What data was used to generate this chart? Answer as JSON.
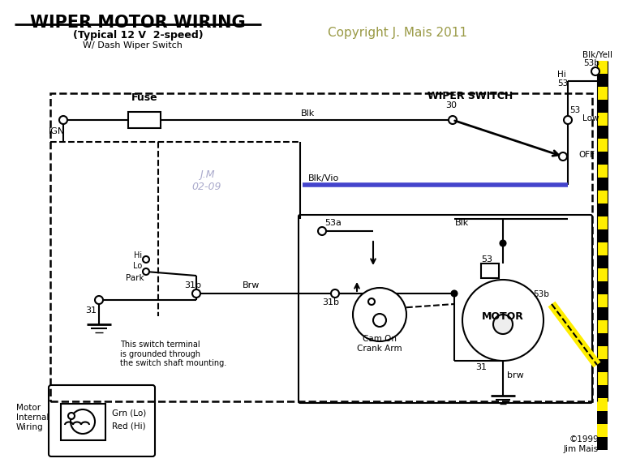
{
  "title": "WIPER MOTOR WIRING",
  "subtitle1": "(Typical 12 V  2-speed)",
  "subtitle2": "W/ Dash Wiper Switch",
  "copyright": "Copyright J. Mais 2011",
  "watermark_line1": "J.M",
  "watermark_line2": "02-09",
  "bottom_copyright": "©1999\nJim Mais",
  "bg_color": "#ffffff",
  "line_color": "#000000",
  "blue_line_color": "#4444cc",
  "yellow_color": "#ffee00",
  "watermark_color": "#aaaacc",
  "title_color": "#000000",
  "copyright_color": "#999944"
}
